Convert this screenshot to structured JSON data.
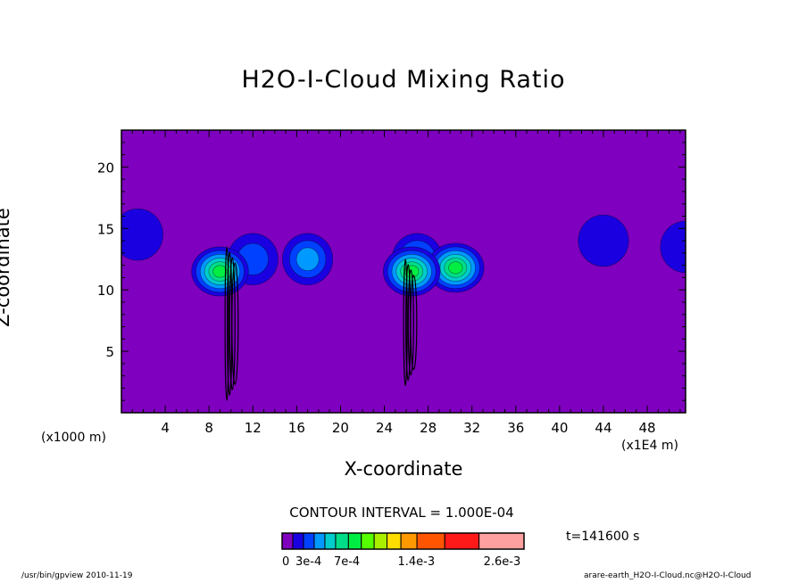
{
  "chart_data": {
    "type": "heatmap",
    "title": "H2O-I-Cloud Mixing Ratio",
    "xlabel": "X-coordinate",
    "ylabel": "Z-coordinate",
    "x_unit_label": "(x1000 m)",
    "x_scale_label": "(x1E4 m)",
    "xticks": [
      4,
      8,
      12,
      16,
      20,
      24,
      28,
      32,
      36,
      40,
      44,
      48
    ],
    "yticks": [
      5,
      10,
      15,
      20
    ],
    "xlim": [
      0,
      51.5
    ],
    "ylim": [
      0,
      23
    ],
    "contour_interval": "CONTOUR INTERVAL = 1.000E-04",
    "time_label": "t=141600 s",
    "colorbar_labels": [
      "0",
      "3e-4",
      "7e-4",
      "1.4e-3",
      "2.6e-3"
    ],
    "colorbar_colors": [
      "#7f00bf",
      "#1a00e0",
      "#0040ff",
      "#0099ff",
      "#00cccc",
      "#00dd88",
      "#00ee44",
      "#55ff00",
      "#aaee00",
      "#ffdd00",
      "#ff9900",
      "#ff5500",
      "#ff1a1a",
      "#ffa0a0"
    ],
    "background_color": "#7f00bf",
    "cloud_features": [
      {
        "x": 1.5,
        "z": 14.5,
        "level": 1
      },
      {
        "x": 44,
        "z": 14,
        "level": 1
      },
      {
        "x": 51.5,
        "z": 13.5,
        "level": 1
      },
      {
        "x": 12,
        "z": 12.5,
        "level": 2
      },
      {
        "x": 17,
        "z": 12.5,
        "level": 3
      },
      {
        "x": 9,
        "z": 11.5,
        "level": 6
      },
      {
        "x": 27,
        "z": 12.5,
        "level": 3
      },
      {
        "x": 30.5,
        "z": 11.8,
        "level": 6
      },
      {
        "x": 26.5,
        "z": 11.5,
        "level": 6
      }
    ]
  },
  "footer": {
    "left": "/usr/bin/gpview  2010-11-19",
    "right": "arare-earth_H2O-I-Cloud.nc@H2O-I-Cloud"
  }
}
